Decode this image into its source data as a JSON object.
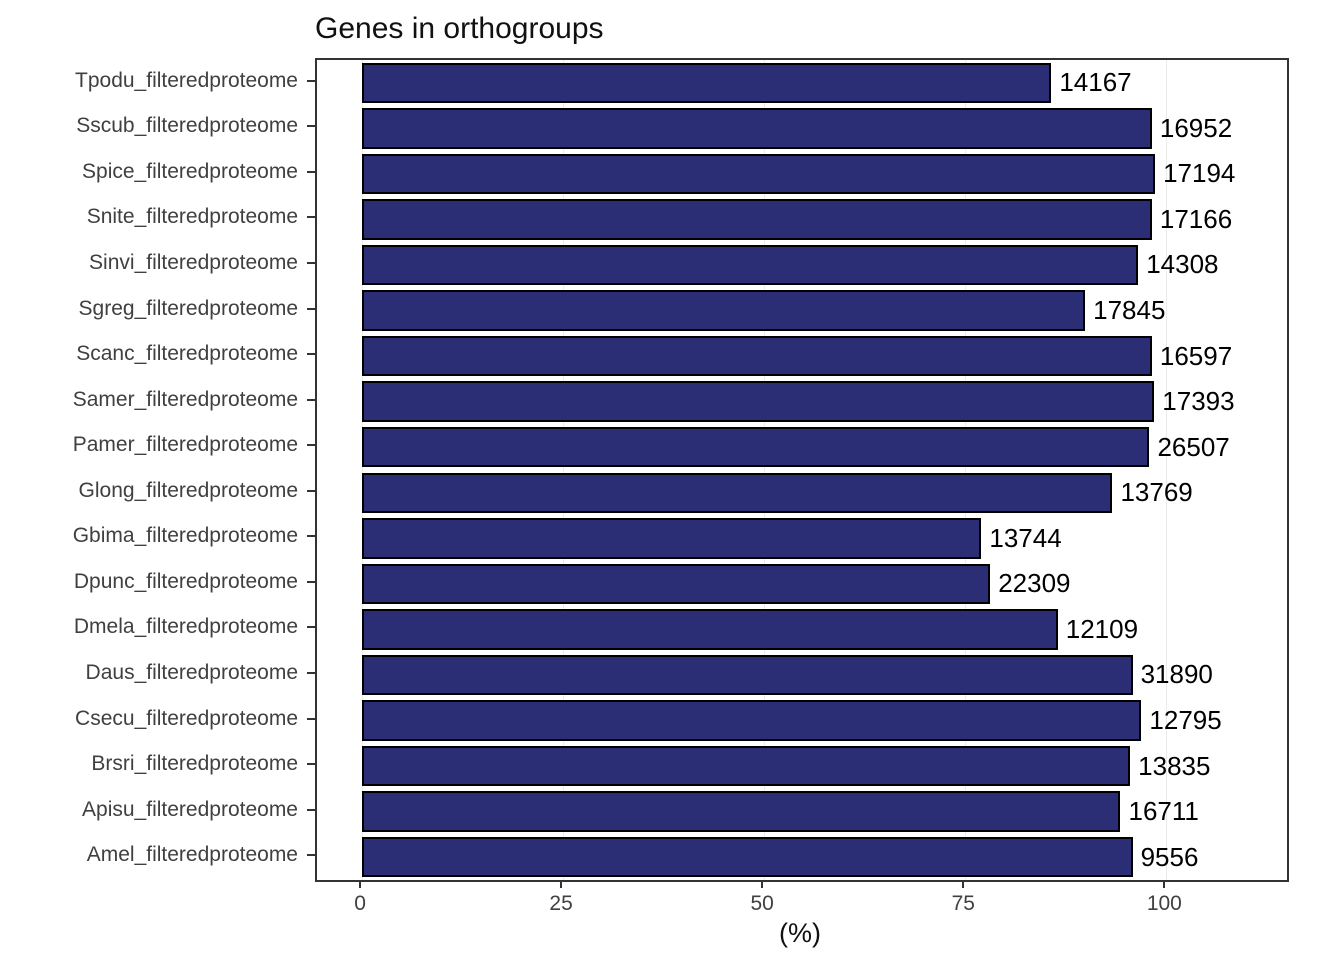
{
  "chart_data": {
    "type": "bar",
    "orientation": "horizontal",
    "title": "Genes in orthogroups",
    "xlabel": "(%)",
    "ylabel": "",
    "xlim": [
      0,
      100
    ],
    "xticks": [
      0,
      25,
      50,
      75,
      100
    ],
    "grid": "light vertical major gridlines",
    "legend_position": "none",
    "bar_color": "#2b2d75",
    "bar_border_color": "#000000",
    "categories": [
      "Tpodu_filteredproteome",
      "Sscub_filteredproteome",
      "Spice_filteredproteome",
      "Snite_filteredproteome",
      "Sinvi_filteredproteome",
      "Sgreg_filteredproteome",
      "Scanc_filteredproteome",
      "Samer_filteredproteome",
      "Pamer_filteredproteome",
      "Glong_filteredproteome",
      "Gbima_filteredproteome",
      "Dpunc_filteredproteome",
      "Dmela_filteredproteome",
      "Daus_filteredproteome",
      "Csecu_filteredproteome",
      "Brsri_filteredproteome",
      "Apisu_filteredproteome",
      "Amel_filteredproteome"
    ],
    "values": [
      85.7,
      98.2,
      98.6,
      98.2,
      96.5,
      89.9,
      98.2,
      98.5,
      97.9,
      93.3,
      77.0,
      78.1,
      86.5,
      95.8,
      96.9,
      95.5,
      94.3,
      95.8
    ],
    "labels": [
      "14167",
      "16952",
      "17194",
      "17166",
      "14308",
      "17845",
      "16597",
      "17393",
      "26507",
      "13769",
      "13744",
      "22309",
      "12109",
      "31890",
      "12795",
      "13835",
      "16711",
      "9556"
    ]
  }
}
